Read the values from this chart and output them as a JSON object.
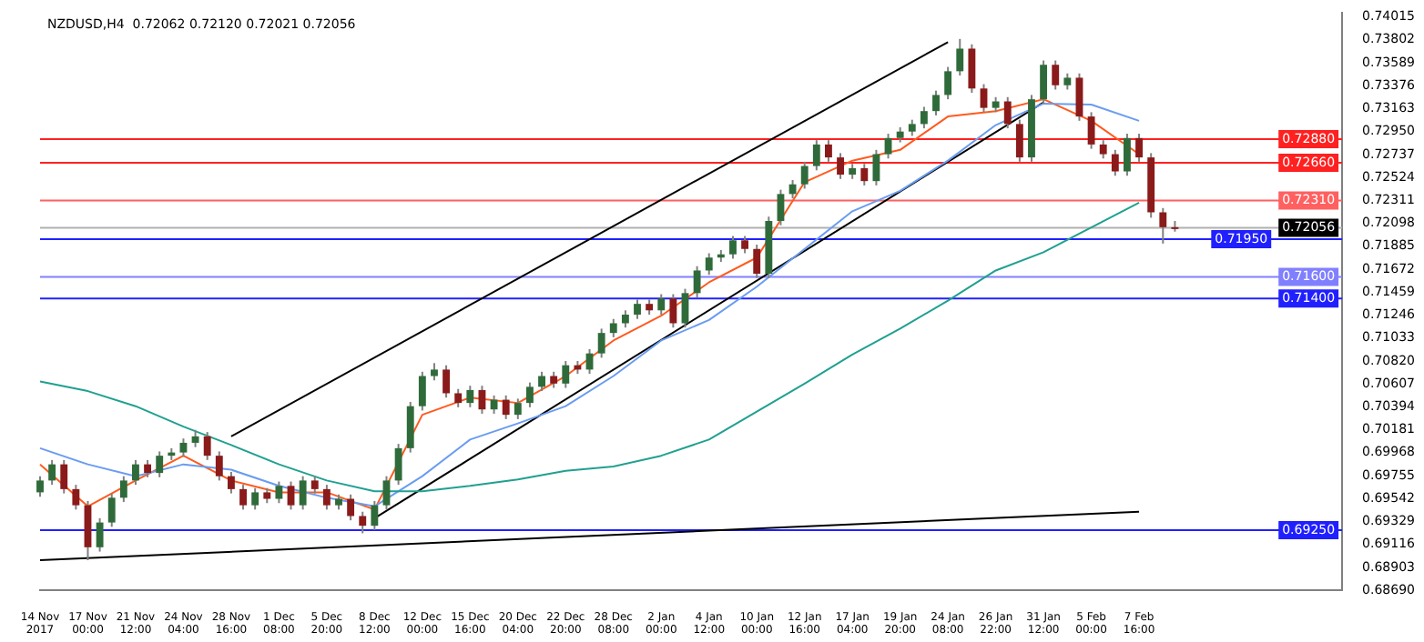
{
  "chart_data": {
    "type": "candlestick",
    "title": "NZDUSD,H4  0.72062 0.72120 0.72021 0.72056",
    "categories": [
      "14 Nov 2017",
      null,
      null,
      null,
      "17 Nov 00:00",
      null,
      null,
      null,
      "21 Nov 12:00",
      null,
      null,
      null,
      "24 Nov 04:00",
      null,
      null,
      null,
      "28 Nov 16:00",
      null,
      null,
      null,
      "1 Dec 08:00",
      null,
      null,
      null,
      "5 Dec 20:00",
      null,
      null,
      null,
      "8 Dec 12:00",
      null,
      null,
      null,
      "12 Dec 00:00",
      null,
      null,
      null,
      "15 Dec 16:00",
      null,
      null,
      null,
      "20 Dec 04:00",
      null,
      null,
      null,
      "22 Dec 20:00",
      null,
      null,
      null,
      "28 Dec 08:00",
      null,
      null,
      null,
      "2 Jan 00:00",
      null,
      null,
      null,
      "4 Jan 12:00",
      null,
      null,
      null,
      "10 Jan 00:00",
      null,
      null,
      null,
      "12 Jan 16:00",
      null,
      null,
      null,
      "17 Jan 04:00",
      null,
      null,
      null,
      "19 Jan 20:00",
      null,
      null,
      null,
      "24 Jan 08:00",
      null,
      null,
      null,
      "26 Jan 22:00",
      null,
      null,
      null,
      "31 Jan 12:00",
      null,
      null,
      null,
      "5 Feb 00:00",
      null,
      null,
      null,
      "7 Feb 16:00",
      null,
      null,
      null,
      null,
      null,
      null,
      null,
      null,
      null,
      null,
      null,
      null,
      null,
      null,
      null,
      null,
      null
    ],
    "ohlc": [
      [
        0.696,
        0.6975,
        0.6956,
        0.6971
      ],
      [
        0.6971,
        0.699,
        0.6967,
        0.6986
      ],
      [
        0.6986,
        0.699,
        0.6959,
        0.6963
      ],
      [
        0.6963,
        0.6967,
        0.6944,
        0.6948
      ],
      [
        0.6948,
        0.6952,
        0.6897,
        0.6909
      ],
      [
        0.6909,
        0.6936,
        0.6905,
        0.6932
      ],
      [
        0.6932,
        0.6959,
        0.6928,
        0.6955
      ],
      [
        0.6955,
        0.6975,
        0.6951,
        0.6971
      ],
      [
        0.6971,
        0.699,
        0.6967,
        0.6986
      ],
      [
        0.6986,
        0.699,
        0.6974,
        0.6978
      ],
      [
        0.6978,
        0.6998,
        0.6974,
        0.6994
      ],
      [
        0.6994,
        0.7001,
        0.699,
        0.6997
      ],
      [
        0.6997,
        0.701,
        0.6993,
        0.7006
      ],
      [
        0.7006,
        0.7018,
        0.7002,
        0.7012
      ],
      [
        0.7012,
        0.7016,
        0.699,
        0.6994
      ],
      [
        0.6994,
        0.6998,
        0.6971,
        0.6975
      ],
      [
        0.6975,
        0.6979,
        0.6959,
        0.6963
      ],
      [
        0.6963,
        0.6967,
        0.6944,
        0.6948
      ],
      [
        0.6948,
        0.6964,
        0.6944,
        0.696
      ],
      [
        0.696,
        0.6964,
        0.695,
        0.6954
      ],
      [
        0.6954,
        0.697,
        0.695,
        0.6966
      ],
      [
        0.6966,
        0.697,
        0.6944,
        0.6948
      ],
      [
        0.6948,
        0.6975,
        0.6944,
        0.6971
      ],
      [
        0.6971,
        0.6975,
        0.6959,
        0.6963
      ],
      [
        0.6963,
        0.6967,
        0.6944,
        0.6948
      ],
      [
        0.6948,
        0.6958,
        0.6944,
        0.6954
      ],
      [
        0.6954,
        0.6958,
        0.6934,
        0.6938
      ],
      [
        0.6938,
        0.6942,
        0.6922,
        0.6929
      ],
      [
        0.6929,
        0.6952,
        0.6925,
        0.6948
      ],
      [
        0.6948,
        0.6975,
        0.6944,
        0.6971
      ],
      [
        0.6971,
        0.7005,
        0.6967,
        0.7001
      ],
      [
        0.7001,
        0.7044,
        0.6997,
        0.704
      ],
      [
        0.704,
        0.7072,
        0.7036,
        0.7068
      ],
      [
        0.7068,
        0.708,
        0.7064,
        0.7074
      ],
      [
        0.7074,
        0.7078,
        0.7048,
        0.7052
      ],
      [
        0.7052,
        0.7056,
        0.7039,
        0.7043
      ],
      [
        0.7043,
        0.7059,
        0.7039,
        0.7055
      ],
      [
        0.7055,
        0.7059,
        0.7033,
        0.7037
      ],
      [
        0.7037,
        0.705,
        0.7033,
        0.7046
      ],
      [
        0.7046,
        0.705,
        0.7028,
        0.7032
      ],
      [
        0.7032,
        0.7047,
        0.7028,
        0.7043
      ],
      [
        0.7043,
        0.7062,
        0.7039,
        0.7058
      ],
      [
        0.7058,
        0.7072,
        0.7054,
        0.7068
      ],
      [
        0.7068,
        0.7072,
        0.7057,
        0.7061
      ],
      [
        0.7061,
        0.7082,
        0.7057,
        0.7078
      ],
      [
        0.7078,
        0.7082,
        0.707,
        0.7074
      ],
      [
        0.7074,
        0.7093,
        0.707,
        0.7089
      ],
      [
        0.7089,
        0.7112,
        0.7085,
        0.7108
      ],
      [
        0.7108,
        0.7121,
        0.7104,
        0.7117
      ],
      [
        0.7117,
        0.7129,
        0.7113,
        0.7125
      ],
      [
        0.7125,
        0.7139,
        0.7121,
        0.7135
      ],
      [
        0.7135,
        0.7139,
        0.7125,
        0.7129
      ],
      [
        0.7129,
        0.7144,
        0.7125,
        0.714
      ],
      [
        0.714,
        0.7144,
        0.7113,
        0.7117
      ],
      [
        0.7117,
        0.7149,
        0.7113,
        0.7145
      ],
      [
        0.7145,
        0.717,
        0.7141,
        0.7166
      ],
      [
        0.7166,
        0.7182,
        0.7162,
        0.7178
      ],
      [
        0.7178,
        0.7185,
        0.7174,
        0.7181
      ],
      [
        0.7181,
        0.7198,
        0.7177,
        0.7194
      ],
      [
        0.7194,
        0.7198,
        0.7182,
        0.7186
      ],
      [
        0.7186,
        0.719,
        0.7159,
        0.7163
      ],
      [
        0.7163,
        0.7216,
        0.7159,
        0.7212
      ],
      [
        0.7212,
        0.7241,
        0.7208,
        0.7237
      ],
      [
        0.7237,
        0.725,
        0.7233,
        0.7246
      ],
      [
        0.7246,
        0.7267,
        0.7242,
        0.7263
      ],
      [
        0.7263,
        0.7287,
        0.7259,
        0.7283
      ],
      [
        0.7283,
        0.7287,
        0.7267,
        0.7271
      ],
      [
        0.7271,
        0.7275,
        0.7251,
        0.7255
      ],
      [
        0.7255,
        0.7265,
        0.7251,
        0.7261
      ],
      [
        0.7261,
        0.7265,
        0.7245,
        0.7249
      ],
      [
        0.7249,
        0.7278,
        0.7245,
        0.7274
      ],
      [
        0.7274,
        0.7293,
        0.727,
        0.7289
      ],
      [
        0.7289,
        0.7299,
        0.7285,
        0.7295
      ],
      [
        0.7295,
        0.7306,
        0.7291,
        0.7302
      ],
      [
        0.7302,
        0.7318,
        0.7298,
        0.7314
      ],
      [
        0.7314,
        0.7333,
        0.731,
        0.7329
      ],
      [
        0.7329,
        0.7355,
        0.7325,
        0.7351
      ],
      [
        0.7351,
        0.7381,
        0.7347,
        0.7372
      ],
      [
        0.7372,
        0.7376,
        0.7331,
        0.7335
      ],
      [
        0.7335,
        0.7339,
        0.7313,
        0.7317
      ],
      [
        0.7317,
        0.7327,
        0.7313,
        0.7323
      ],
      [
        0.7323,
        0.7327,
        0.7298,
        0.7302
      ],
      [
        0.7302,
        0.7306,
        0.7267,
        0.7271
      ],
      [
        0.7271,
        0.7329,
        0.7267,
        0.7325
      ],
      [
        0.7325,
        0.7361,
        0.7321,
        0.7357
      ],
      [
        0.7357,
        0.7361,
        0.7334,
        0.7338
      ],
      [
        0.7338,
        0.7349,
        0.7334,
        0.7345
      ],
      [
        0.7345,
        0.7349,
        0.7305,
        0.7309
      ],
      [
        0.7309,
        0.7313,
        0.7279,
        0.7283
      ],
      [
        0.7283,
        0.7287,
        0.727,
        0.7274
      ],
      [
        0.7274,
        0.7278,
        0.7254,
        0.7258
      ],
      [
        0.7258,
        0.7293,
        0.7254,
        0.7289
      ],
      [
        0.7289,
        0.7293,
        0.7267,
        0.7271
      ],
      [
        0.7271,
        0.7275,
        0.7215,
        0.722
      ],
      [
        0.722,
        0.7224,
        0.7191,
        0.72062
      ],
      [
        0.72062,
        0.7212,
        0.72021,
        0.72056
      ],
      null,
      null,
      null,
      null,
      null,
      null,
      null,
      null,
      null,
      null,
      null,
      null,
      null,
      null
    ],
    "series": [
      {
        "type": "line",
        "color": "#20a090",
        "x": [
          "14 Nov 2017",
          "17 Nov 00:00",
          "21 Nov 12:00",
          "24 Nov 04:00",
          "28 Nov 16:00",
          "1 Dec 08:00",
          "5 Dec 20:00",
          "8 Dec 12:00",
          "12 Dec 00:00",
          "15 Dec 16:00",
          "20 Dec 04:00",
          "22 Dec 20:00",
          "28 Dec 08:00",
          "2 Jan 00:00",
          "4 Jan 12:00",
          "10 Jan 00:00",
          "12 Jan 16:00",
          "17 Jan 04:00",
          "19 Jan 20:00",
          "24 Jan 08:00",
          "26 Jan 22:00",
          "31 Jan 12:00",
          "5 Feb 00:00",
          "7 Feb 16:00"
        ],
        "values": [
          0.7063,
          0.7054,
          0.704,
          0.7021,
          0.7004,
          0.6986,
          0.6971,
          0.6961,
          0.6961,
          0.6966,
          0.6972,
          0.698,
          0.6984,
          0.6994,
          0.7009,
          0.7035,
          0.7061,
          0.7088,
          0.7112,
          0.7138,
          0.7166,
          0.7183,
          0.7206,
          0.7229
        ]
      },
      {
        "type": "line",
        "color": "#6a9cf0",
        "x": [
          "14 Nov 2017",
          "17 Nov 00:00",
          "21 Nov 12:00",
          "24 Nov 04:00",
          "28 Nov 16:00",
          "1 Dec 08:00",
          "5 Dec 20:00",
          "8 Dec 12:00",
          "12 Dec 00:00",
          "15 Dec 16:00",
          "20 Dec 04:00",
          "22 Dec 20:00",
          "28 Dec 08:00",
          "2 Jan 00:00",
          "4 Jan 12:00",
          "10 Jan 00:00",
          "12 Jan 16:00",
          "17 Jan 04:00",
          "19 Jan 20:00",
          "24 Jan 08:00",
          "26 Jan 22:00",
          "31 Jan 12:00",
          "5 Feb 00:00",
          "7 Feb 16:00"
        ],
        "values": [
          0.7001,
          0.6986,
          0.6975,
          0.6986,
          0.6981,
          0.6966,
          0.6955,
          0.6947,
          0.6975,
          0.7009,
          0.7024,
          0.704,
          0.7068,
          0.7101,
          0.712,
          0.7151,
          0.7186,
          0.7221,
          0.724,
          0.7268,
          0.7301,
          0.7321,
          0.732,
          0.7305
        ]
      },
      {
        "type": "line",
        "color": "#ff5a1e",
        "x": [
          "14 Nov 2017",
          "17 Nov 00:00",
          "21 Nov 12:00",
          "24 Nov 04:00",
          "28 Nov 16:00",
          "1 Dec 08:00",
          "5 Dec 20:00",
          "8 Dec 12:00",
          "12 Dec 00:00",
          "15 Dec 16:00",
          "20 Dec 04:00",
          "22 Dec 20:00",
          "28 Dec 08:00",
          "2 Jan 00:00",
          "4 Jan 12:00",
          "10 Jan 00:00",
          "12 Jan 16:00",
          "17 Jan 04:00",
          "19 Jan 20:00",
          "24 Jan 08:00",
          "26 Jan 22:00",
          "31 Jan 12:00",
          "5 Feb 00:00",
          "7 Feb 16:00"
        ],
        "values": [
          0.6986,
          0.6947,
          0.6971,
          0.6994,
          0.6971,
          0.696,
          0.696,
          0.6944,
          0.7032,
          0.7048,
          0.7043,
          0.7068,
          0.7101,
          0.7124,
          0.7155,
          0.7178,
          0.7248,
          0.7268,
          0.7278,
          0.7309,
          0.7314,
          0.7325,
          0.7305,
          0.7274
        ]
      },
      {
        "type": "line",
        "color": "#000000",
        "x": [
          "28 Nov 16:00",
          "24 Jan 08:00"
        ],
        "values": [
          0.7012,
          0.7378
        ]
      },
      {
        "type": "line",
        "color": "#000000",
        "x": [
          "8 Dec 12:00",
          "31 Jan 12:00"
        ],
        "values": [
          0.6936,
          0.7322
        ]
      },
      {
        "type": "line",
        "color": "#000000",
        "x": [
          "14 Nov 2017",
          "7 Feb 16:00"
        ],
        "values": [
          0.6897,
          0.6942
        ]
      }
    ],
    "ylim": [
      0.6869,
      0.7405
    ],
    "yticks": [
      {
        "value": 0.6869,
        "label": "0.68690"
      },
      0.68903,
      0.69116,
      0.69329,
      0.69542,
      0.69755,
      0.69968,
      0.70181,
      0.70394,
      0.70607,
      {
        "value": 0.7082,
        "label": "0.70820"
      },
      0.71033,
      0.71246,
      0.71459,
      0.71672,
      0.71885,
      0.72098,
      0.72311,
      0.72524,
      0.72737,
      {
        "value": 0.7295,
        "label": "0.72950"
      },
      0.73163,
      0.73376,
      0.73589,
      0.73802,
      0.74015
    ],
    "ref_lines": [
      {
        "axis": "y",
        "value": 0.7288,
        "label": "0.72880",
        "color": "#ff2020"
      },
      {
        "axis": "y",
        "value": 0.7266,
        "label": "0.72660",
        "color": "#ff2020"
      },
      {
        "axis": "y",
        "value": 0.7231,
        "label": "0.72310",
        "color": "#ff6060"
      },
      {
        "axis": "y",
        "value": 0.72056,
        "label": "0.72056",
        "color": "#b0b0b0"
      },
      {
        "axis": "y",
        "value": 0.7195,
        "label": "0.71950",
        "color": "#2020ff"
      },
      {
        "axis": "y",
        "value": 0.716,
        "label": "0.71600",
        "color": "#8080ff"
      },
      {
        "axis": "y",
        "value": 0.714,
        "label": "0.71400",
        "color": "#2020ff"
      },
      {
        "axis": "y",
        "value": 0.6925,
        "label": "0.69250",
        "color": "#2020ff"
      }
    ],
    "grid": false,
    "legend": false
  }
}
